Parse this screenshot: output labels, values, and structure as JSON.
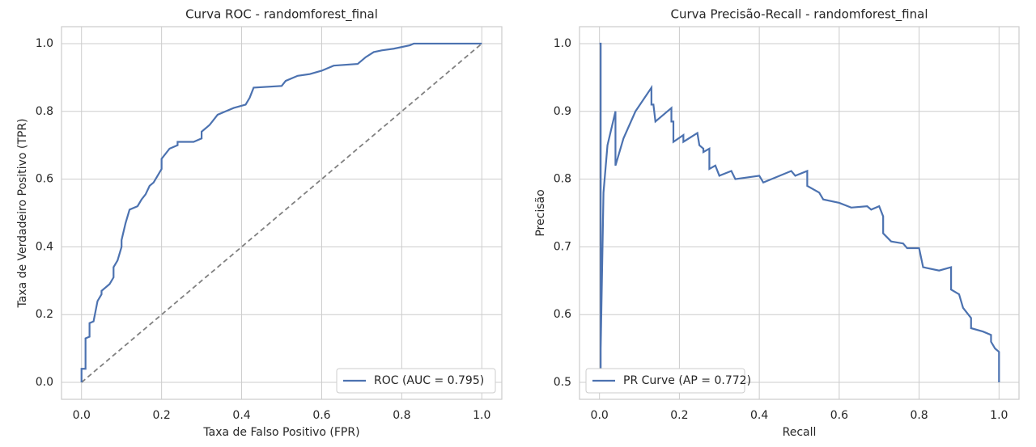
{
  "chart_data": [
    {
      "type": "line",
      "title": "Curva ROC - randomforest_final",
      "x_label": "Taxa de Falso Positivo (FPR)",
      "y_label": "Taxa de Verdadeiro Positivo (TPR)",
      "xlim": [
        -0.05,
        1.05
      ],
      "ylim": [
        -0.05,
        1.05
      ],
      "xticks": [
        {
          "value": 0,
          "label": "0.0"
        },
        0.2,
        0.4,
        0.6,
        0.8,
        {
          "value": 1,
          "label": "1.0"
        }
      ],
      "yticks": [
        {
          "value": 0,
          "label": "0.0"
        },
        0.2,
        0.4,
        0.6,
        0.8,
        {
          "value": 1,
          "label": "1.0"
        }
      ],
      "grid": true,
      "legend": "lower right",
      "reference_line": {
        "x": [
          0,
          1
        ],
        "y": [
          0,
          1
        ],
        "color": "#808080",
        "dashed": true
      },
      "series": [
        {
          "name": "ROC (AUC = 0.795)",
          "color": "#4c72b0",
          "x": [
            0,
            0,
            0.01,
            0.01,
            0.02,
            0.02,
            0.03,
            0.035,
            0.04,
            0.05,
            0.05,
            0.07,
            0.08,
            0.08,
            0.09,
            0.1,
            0.1,
            0.11,
            0.12,
            0.14,
            0.15,
            0.16,
            0.17,
            0.18,
            0.19,
            0.2,
            0.2,
            0.22,
            0.24,
            0.24,
            0.28,
            0.3,
            0.3,
            0.32,
            0.34,
            0.36,
            0.38,
            0.41,
            0.42,
            0.43,
            0.5,
            0.51,
            0.54,
            0.57,
            0.6,
            0.63,
            0.69,
            0.71,
            0.73,
            0.75,
            0.78,
            0.82,
            0.83,
            1.0
          ],
          "values": [
            0,
            0.04,
            0.04,
            0.13,
            0.135,
            0.175,
            0.18,
            0.21,
            0.24,
            0.26,
            0.27,
            0.29,
            0.31,
            0.34,
            0.36,
            0.4,
            0.42,
            0.47,
            0.51,
            0.52,
            0.54,
            0.555,
            0.58,
            0.59,
            0.61,
            0.63,
            0.66,
            0.69,
            0.7,
            0.71,
            0.71,
            0.72,
            0.74,
            0.76,
            0.79,
            0.8,
            0.81,
            0.82,
            0.84,
            0.87,
            0.875,
            0.89,
            0.905,
            0.91,
            0.92,
            0.935,
            0.94,
            0.96,
            0.975,
            0.98,
            0.985,
            0.995,
            1.0,
            1.0
          ]
        }
      ]
    },
    {
      "type": "line",
      "title": "Curva Precisão-Recall - randomforest_final",
      "x_label": "Recall",
      "y_label": "Precisão",
      "xlim": [
        -0.05,
        1.05
      ],
      "ylim": [
        0.475,
        1.025
      ],
      "xticks": [
        {
          "value": 0,
          "label": "0.0"
        },
        0.2,
        0.4,
        0.6,
        0.8,
        {
          "value": 1,
          "label": "1.0"
        }
      ],
      "yticks": [
        0.5,
        0.6,
        0.7,
        0.8,
        0.9,
        {
          "value": 1,
          "label": "1.0"
        }
      ],
      "grid": true,
      "legend": "lower left",
      "series": [
        {
          "name": "PR Curve (AP = 0.772)",
          "color": "#4c72b0",
          "x": [
            0,
            0.003,
            0.003,
            0.003,
            0.01,
            0.02,
            0.04,
            0.04,
            0.06,
            0.09,
            0.13,
            0.13,
            0.135,
            0.14,
            0.18,
            0.18,
            0.185,
            0.185,
            0.21,
            0.21,
            0.245,
            0.25,
            0.26,
            0.26,
            0.275,
            0.275,
            0.29,
            0.3,
            0.33,
            0.34,
            0.4,
            0.41,
            0.48,
            0.49,
            0.52,
            0.52,
            0.55,
            0.56,
            0.6,
            0.63,
            0.67,
            0.68,
            0.7,
            0.71,
            0.71,
            0.73,
            0.76,
            0.77,
            0.8,
            0.81,
            0.85,
            0.88,
            0.88,
            0.9,
            0.91,
            0.93,
            0.93,
            0.96,
            0.98,
            0.98,
            0.99,
            1.0,
            1.0
          ],
          "values": [
            1.0,
            1.0,
            0.5,
            0.55,
            0.78,
            0.85,
            0.9,
            0.82,
            0.86,
            0.9,
            0.935,
            0.91,
            0.91,
            0.885,
            0.905,
            0.885,
            0.885,
            0.855,
            0.865,
            0.855,
            0.868,
            0.85,
            0.845,
            0.84,
            0.845,
            0.815,
            0.82,
            0.805,
            0.812,
            0.8,
            0.805,
            0.795,
            0.812,
            0.805,
            0.812,
            0.79,
            0.78,
            0.77,
            0.765,
            0.758,
            0.76,
            0.755,
            0.76,
            0.745,
            0.72,
            0.708,
            0.705,
            0.698,
            0.698,
            0.67,
            0.665,
            0.67,
            0.637,
            0.63,
            0.61,
            0.595,
            0.58,
            0.575,
            0.57,
            0.56,
            0.55,
            0.545,
            0.5
          ]
        }
      ]
    }
  ]
}
